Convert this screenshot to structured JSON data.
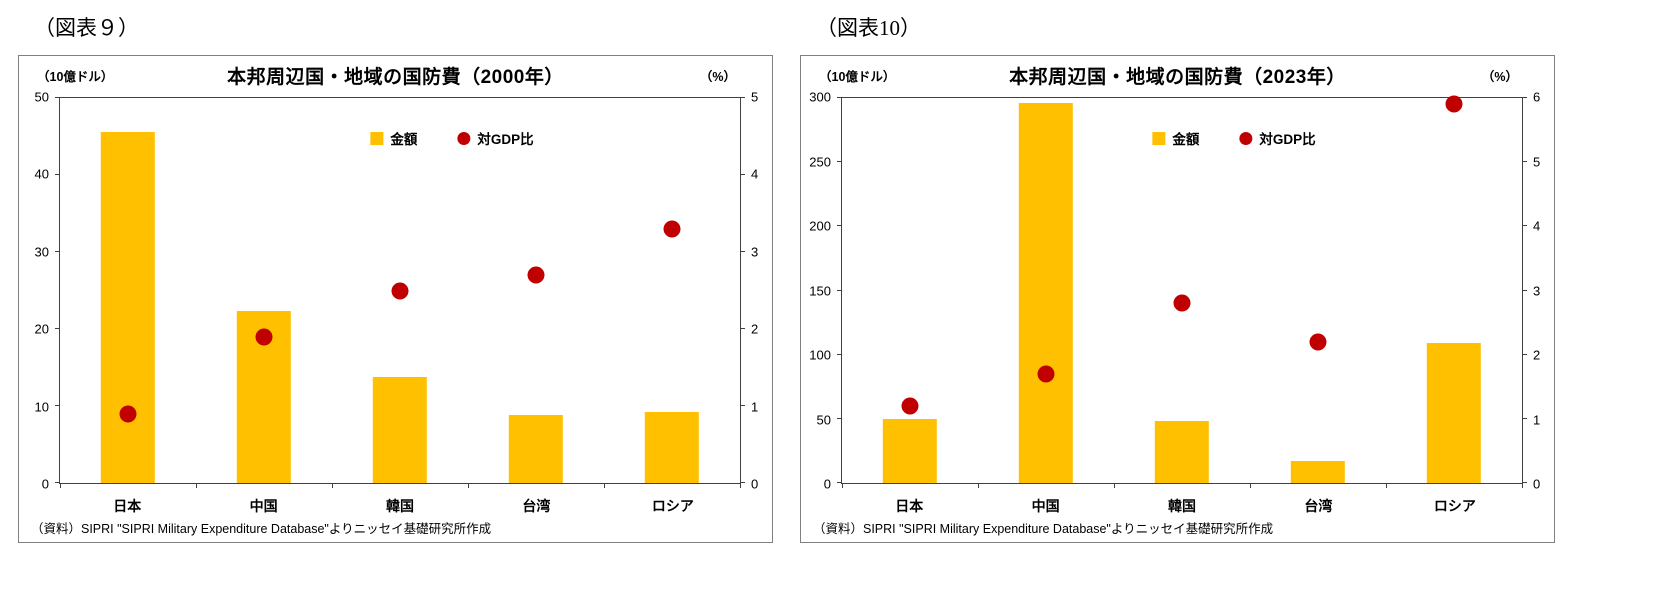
{
  "figures": [
    {
      "label": "（図表９）",
      "title": "本邦周辺国・地域の国防費（2000年）",
      "left_axis_unit": "（10億ドル）",
      "right_axis_unit": "（%）",
      "legend_bar": "金額",
      "legend_dot": "対GDP比",
      "source": "（資料）SIPRI \"SIPRI Military Expenditure Database\"よりニッセイ基礎研究所作成"
    },
    {
      "label": "（図表10）",
      "title": "本邦周辺国・地域の国防費（2023年）",
      "left_axis_unit": "（10億ドル）",
      "right_axis_unit": "（%）",
      "legend_bar": "金額",
      "legend_dot": "対GDP比",
      "source": "（資料）SIPRI \"SIPRI Military Expenditure Database\"よりニッセイ基礎研究所作成"
    }
  ],
  "colors": {
    "bar": "#FFC000",
    "dot": "#C00000"
  },
  "chart_data": [
    {
      "type": "bar",
      "title": "本邦周辺国・地域の国防費（2000年）",
      "categories": [
        "日本",
        "中国",
        "韓国",
        "台湾",
        "ロシア"
      ],
      "series": [
        {
          "name": "金額",
          "type": "bar",
          "axis": "left",
          "values": [
            45.6,
            22.3,
            13.8,
            8.8,
            9.2
          ]
        },
        {
          "name": "対GDP比",
          "type": "scatter",
          "axis": "right",
          "values": [
            0.9,
            1.9,
            2.5,
            2.7,
            3.3
          ]
        }
      ],
      "left_axis": {
        "label": "（10億ドル）",
        "min": 0,
        "max": 50,
        "step": 10
      },
      "right_axis": {
        "label": "（%）",
        "min": 0,
        "max": 5,
        "step": 1
      },
      "grid": false,
      "legend_position": "inside-top-center"
    },
    {
      "type": "bar",
      "title": "本邦周辺国・地域の国防費（2023年）",
      "categories": [
        "日本",
        "中国",
        "韓国",
        "台湾",
        "ロシア"
      ],
      "series": [
        {
          "name": "金額",
          "type": "bar",
          "axis": "left",
          "values": [
            50,
            296,
            48,
            17,
            109
          ]
        },
        {
          "name": "対GDP比",
          "type": "scatter",
          "axis": "right",
          "values": [
            1.2,
            1.7,
            2.8,
            2.2,
            5.9
          ]
        }
      ],
      "left_axis": {
        "label": "（10億ドル）",
        "min": 0,
        "max": 300,
        "step": 50
      },
      "right_axis": {
        "label": "（%）",
        "min": 0,
        "max": 6,
        "step": 1
      },
      "grid": false,
      "legend_position": "inside-top-center"
    }
  ]
}
